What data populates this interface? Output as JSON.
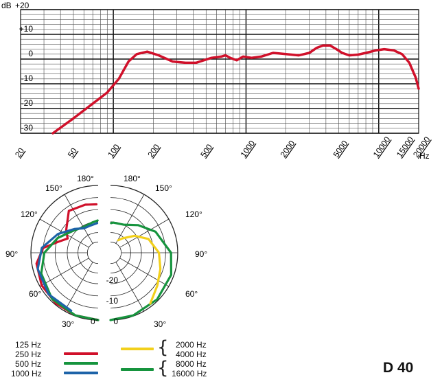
{
  "chart_data": [
    {
      "type": "line",
      "xscale": "log",
      "xlim": [
        20,
        20000
      ],
      "ylim": [
        -30,
        20
      ],
      "y_unit": "dB",
      "x_unit": "Hz",
      "y_ticks": [
        {
          "value": 20,
          "label": "+20"
        },
        {
          "value": 10,
          "label": "+10"
        },
        {
          "value": 0,
          "label": "0"
        },
        {
          "value": -10,
          "label": "-10"
        },
        {
          "value": -20,
          "label": "-20"
        },
        {
          "value": -30,
          "label": "-30"
        }
      ],
      "x_ticks": [
        {
          "value": 20,
          "label": "20"
        },
        {
          "value": 50,
          "label": "50"
        },
        {
          "value": 100,
          "label": "100"
        },
        {
          "value": 200,
          "label": "200"
        },
        {
          "value": 500,
          "label": "500"
        },
        {
          "value": 1000,
          "label": "1000"
        },
        {
          "value": 2000,
          "label": "2000"
        },
        {
          "value": 5000,
          "label": "5000"
        },
        {
          "value": 10000,
          "label": "10000"
        },
        {
          "value": 15000,
          "label": "15000"
        },
        {
          "value": 20000,
          "label": "20000"
        }
      ],
      "grid": true,
      "color": "#d0102a",
      "series": [
        {
          "x": [
            35,
            50,
            70,
            90,
            110,
            130,
            150,
            180,
            220,
            280,
            350,
            420,
            480,
            550,
            650,
            700,
            760,
            850,
            950,
            1100,
            1300,
            1600,
            2000,
            2500,
            3000,
            3400,
            3800,
            4300,
            4800,
            5300,
            6000,
            7000,
            8000,
            9500,
            11000,
            13000,
            15000,
            17000,
            19000,
            20000
          ],
          "y": [
            -30,
            -24,
            -18,
            -13.5,
            -8,
            -1,
            2,
            3,
            1.5,
            -1,
            -1.5,
            -1.5,
            -0.5,
            0.5,
            1,
            1.5,
            0.5,
            -0.5,
            1,
            0.5,
            1,
            2.5,
            2,
            1.5,
            2.5,
            4.5,
            5.5,
            5.5,
            4,
            2.5,
            1.5,
            1.8,
            2.5,
            3.5,
            4,
            3.5,
            2,
            -1.5,
            -7.5,
            -12
          ]
        }
      ]
    },
    {
      "type": "polar",
      "rings_db": [
        0,
        -10,
        -20
      ],
      "ring_labels": [
        "0",
        "-10",
        "-20"
      ],
      "angle_labels": [
        "0°",
        "30°",
        "60°",
        "90°",
        "120°",
        "150°",
        "180°"
      ],
      "series": [
        {
          "name": "125 Hz",
          "color": "#d0102a"
        },
        {
          "name": "250 Hz",
          "color": "#d0102a"
        },
        {
          "name": "500 Hz",
          "color": "#16943e"
        },
        {
          "name": "1000 Hz",
          "color": "#1d63a8"
        },
        {
          "name": "2000 Hz",
          "color": "#f2d01c"
        },
        {
          "name": "4000 Hz",
          "color": "#f2d01c"
        },
        {
          "name": "8000 Hz",
          "color": "#16943e"
        },
        {
          "name": "16000 Hz",
          "color": "#16943e"
        }
      ]
    }
  ],
  "model": "D 40"
}
